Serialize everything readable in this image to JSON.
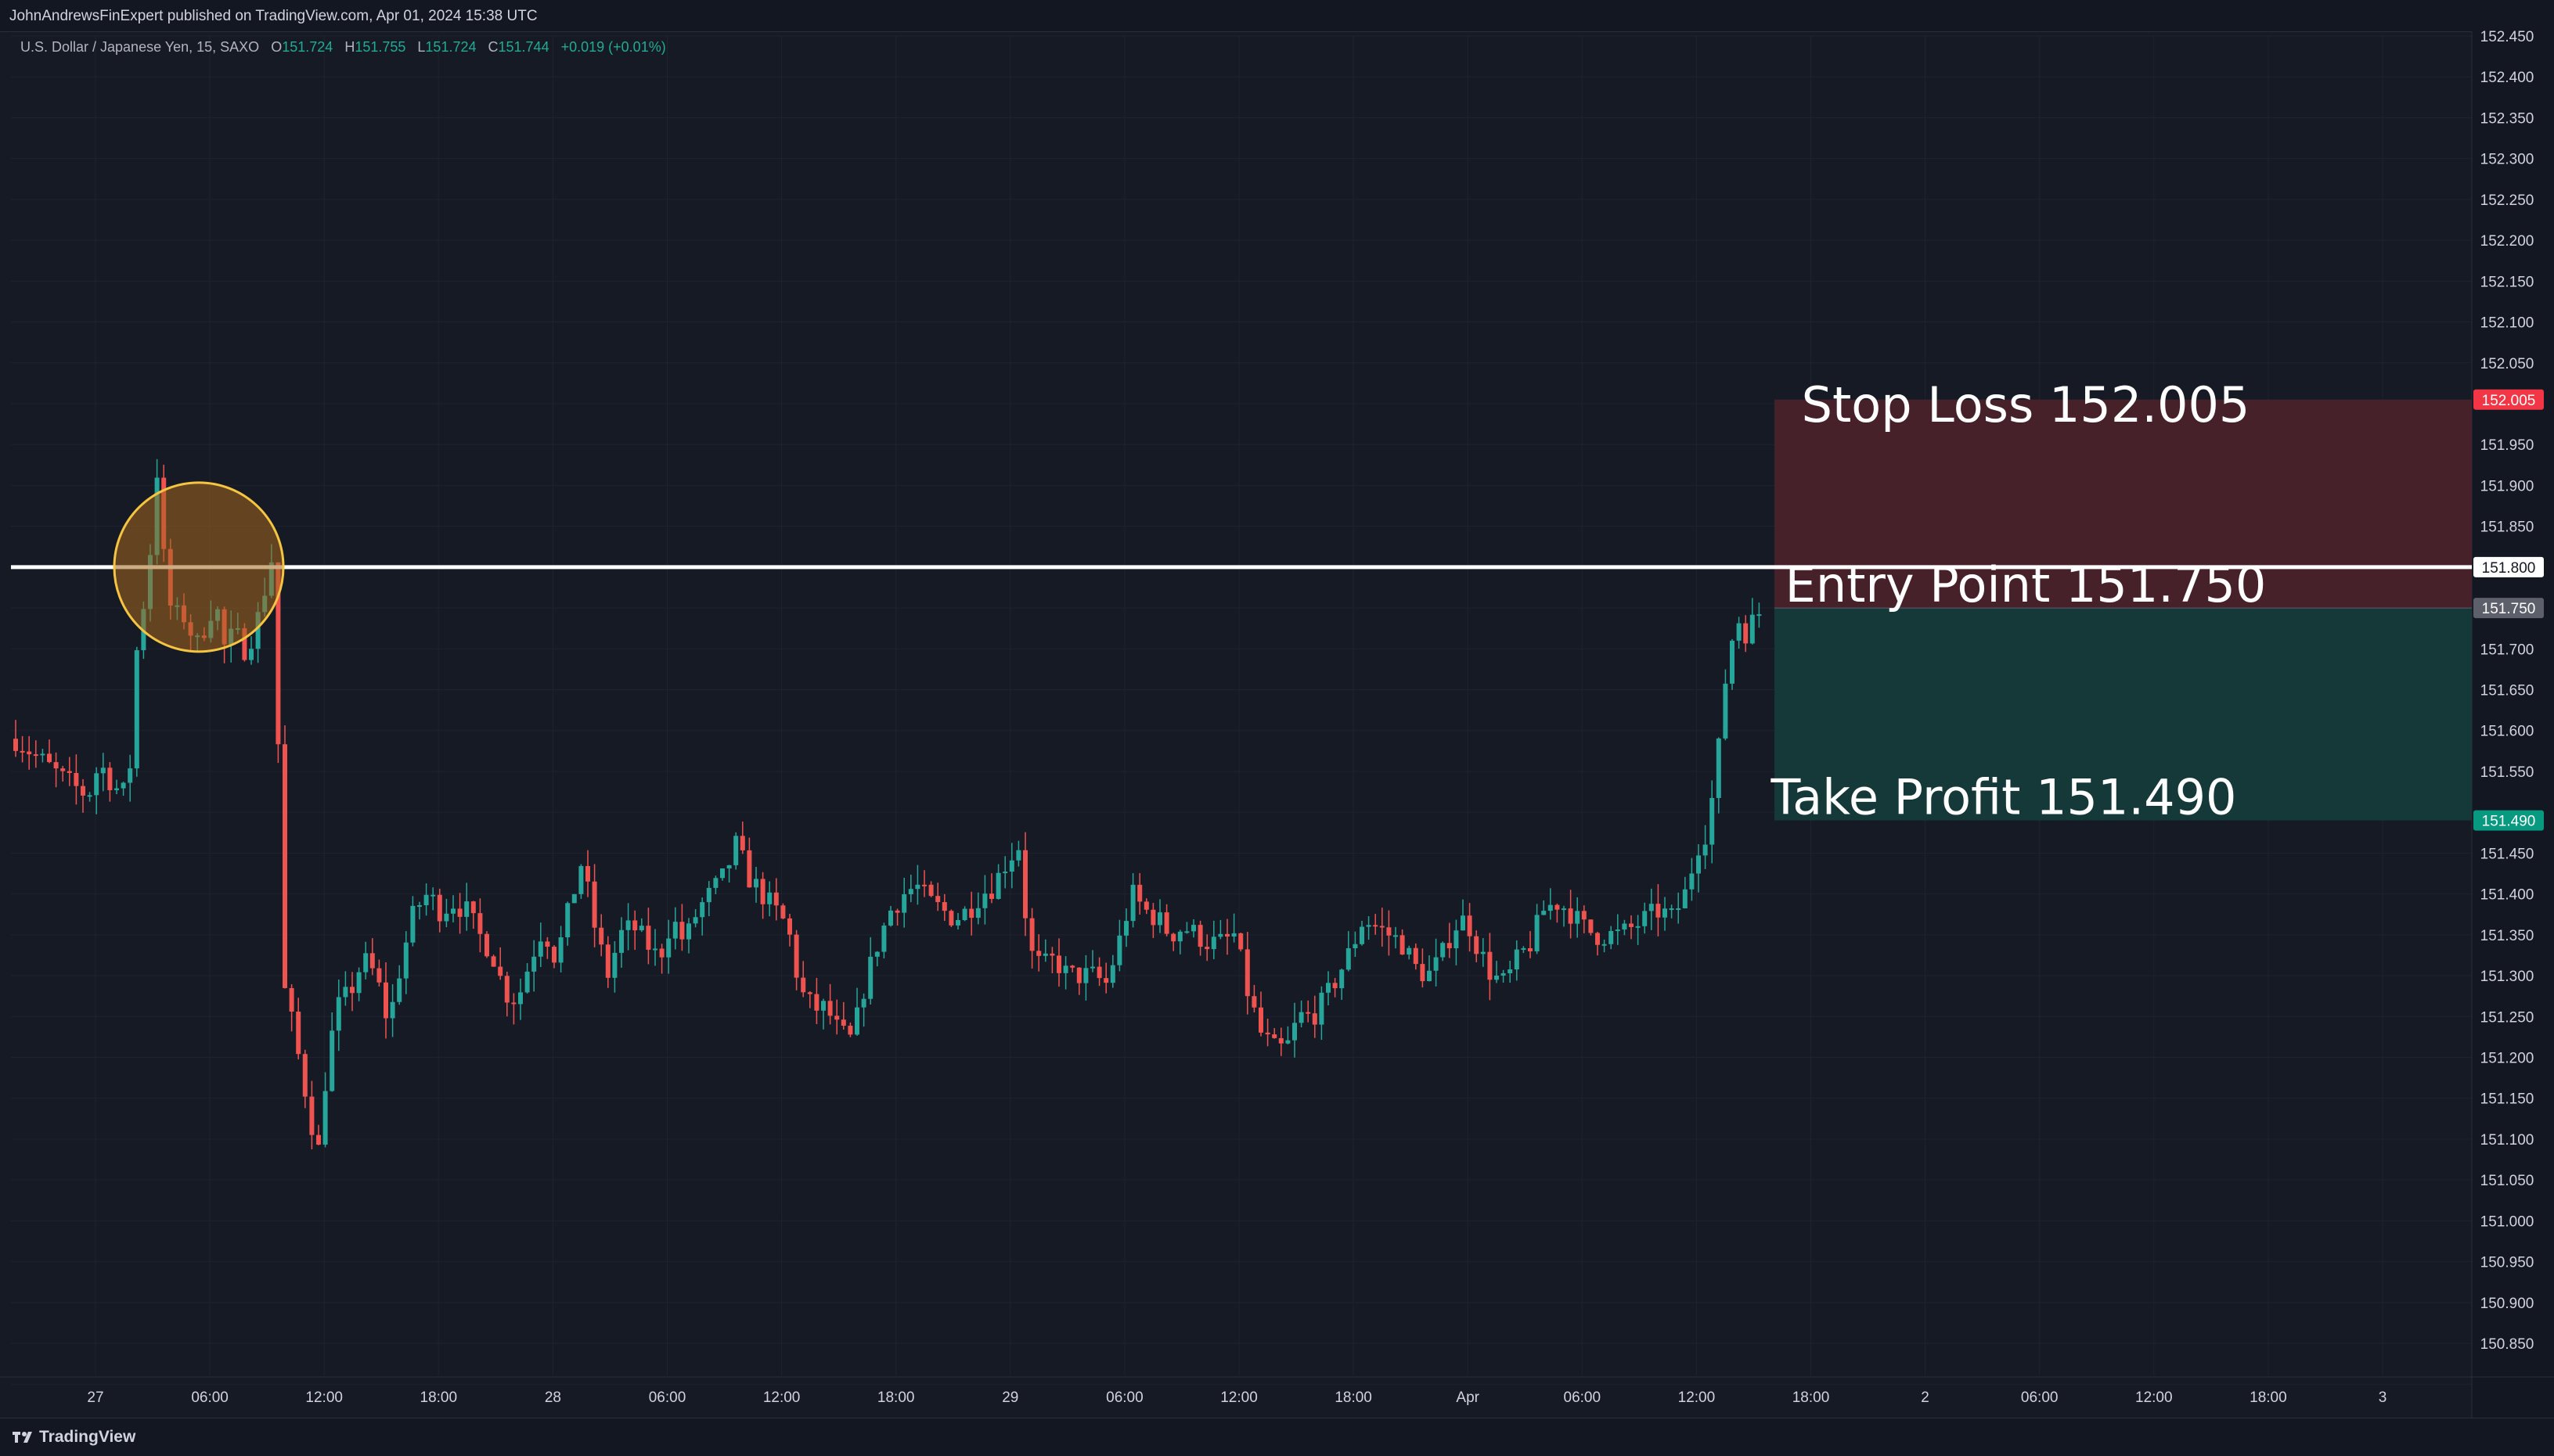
{
  "header": {
    "published_by": "JohnAndrewsFinExpert published on TradingView.com, Apr 01, 2024 15:38 UTC"
  },
  "legend": {
    "symbol": "U.S. Dollar / Japanese Yen, 15, SAXO",
    "open_label": "O",
    "open": "151.724",
    "high_label": "H",
    "high": "151.755",
    "low_label": "L",
    "low": "151.724",
    "close_label": "C",
    "close": "151.744",
    "change": "+0.019 (+0.01%)"
  },
  "footer": {
    "brand": "TradingView"
  },
  "colors": {
    "background": "#131722",
    "up_candle": "#26a69a",
    "down_candle": "#ef5350",
    "stop_zone": "#4a2229",
    "profit_zone": "#153b3a",
    "stop_badge": "#f23645",
    "profit_badge": "#089981",
    "entry_badge": "#5d606b",
    "circle_stroke": "#f5c542",
    "circle_fill": "#a4661d"
  },
  "chart_data": {
    "type": "candlestick",
    "instrument": "U.S. Dollar / Japanese Yen, 15, SAXO",
    "y_axis": {
      "range": [
        150.8,
        152.46
      ],
      "ticks": [
        "152.450",
        "152.400",
        "152.350",
        "152.300",
        "152.250",
        "152.200",
        "152.150",
        "152.100",
        "152.050",
        "151.950",
        "151.900",
        "151.850",
        "151.700",
        "151.650",
        "151.600",
        "151.550",
        "151.450",
        "151.400",
        "151.350",
        "151.300",
        "151.250",
        "151.200",
        "151.150",
        "151.100",
        "151.050",
        "151.000",
        "150.950",
        "150.900",
        "150.850"
      ]
    },
    "x_axis": {
      "ticks": [
        "27",
        "06:00",
        "12:00",
        "18:00",
        "28",
        "06:00",
        "12:00",
        "18:00",
        "29",
        "06:00",
        "12:00",
        "18:00",
        "Apr",
        "06:00",
        "12:00",
        "18:00",
        "2",
        "06:00",
        "12:00",
        "18:00",
        "3"
      ]
    },
    "horizontal_line": {
      "price": 151.8,
      "label": "151.800"
    },
    "position": {
      "stop_loss": {
        "price": 152.005,
        "label": "Stop Loss 152.005",
        "badge": "152.005"
      },
      "entry": {
        "price": 151.75,
        "label": "Entry Point 151.750",
        "badge": "151.750"
      },
      "take_profit": {
        "price": 151.49,
        "label": "Take Profit 151.490",
        "badge": "151.490"
      }
    },
    "highlight_circle": {
      "center_price": 151.8,
      "time_window": "27 early session"
    },
    "path": [
      [
        0,
        151.59
      ],
      [
        12,
        151.57
      ],
      [
        30,
        151.54
      ],
      [
        45,
        151.52
      ],
      [
        52,
        151.56
      ],
      [
        62,
        151.53
      ],
      [
        70,
        151.52
      ],
      [
        76,
        151.72
      ],
      [
        82,
        151.78
      ],
      [
        88,
        151.92
      ],
      [
        94,
        151.76
      ],
      [
        100,
        151.74
      ],
      [
        106,
        151.74
      ],
      [
        112,
        151.7
      ],
      [
        118,
        151.73
      ],
      [
        124,
        151.76
      ],
      [
        130,
        151.7
      ],
      [
        136,
        151.72
      ],
      [
        142,
        151.7
      ],
      [
        148,
        151.72
      ],
      [
        154,
        151.76
      ],
      [
        158,
        151.82
      ],
      [
        162,
        151.78
      ],
      [
        165,
        151.3
      ],
      [
        170,
        151.26
      ],
      [
        176,
        151.2
      ],
      [
        182,
        151.14
      ],
      [
        188,
        151.08
      ],
      [
        194,
        151.2
      ],
      [
        200,
        151.26
      ],
      [
        208,
        151.28
      ],
      [
        216,
        151.32
      ],
      [
        224,
        151.3
      ],
      [
        232,
        151.24
      ],
      [
        240,
        151.32
      ],
      [
        248,
        151.38
      ],
      [
        256,
        151.4
      ],
      [
        264,
        151.38
      ],
      [
        272,
        151.39
      ],
      [
        280,
        151.38
      ],
      [
        288,
        151.35
      ],
      [
        296,
        151.33
      ],
      [
        304,
        151.28
      ],
      [
        312,
        151.27
      ],
      [
        320,
        151.32
      ],
      [
        328,
        151.36
      ],
      [
        336,
        151.32
      ],
      [
        344,
        151.38
      ],
      [
        352,
        151.44
      ],
      [
        360,
        151.36
      ],
      [
        368,
        151.3
      ],
      [
        376,
        151.35
      ],
      [
        384,
        151.36
      ],
      [
        392,
        151.34
      ],
      [
        400,
        151.32
      ],
      [
        408,
        151.37
      ],
      [
        416,
        151.34
      ],
      [
        424,
        151.38
      ],
      [
        432,
        151.4
      ],
      [
        440,
        151.42
      ],
      [
        448,
        151.46
      ],
      [
        456,
        151.42
      ],
      [
        464,
        151.4
      ],
      [
        472,
        151.38
      ],
      [
        480,
        151.36
      ],
      [
        488,
        151.28
      ],
      [
        496,
        151.26
      ],
      [
        504,
        151.26
      ],
      [
        512,
        151.23
      ],
      [
        520,
        151.22
      ],
      [
        528,
        151.29
      ],
      [
        536,
        151.34
      ],
      [
        544,
        151.38
      ],
      [
        552,
        151.4
      ],
      [
        560,
        151.41
      ],
      [
        568,
        151.39
      ],
      [
        576,
        151.38
      ],
      [
        584,
        151.37
      ],
      [
        592,
        151.38
      ],
      [
        600,
        151.4
      ],
      [
        608,
        151.41
      ],
      [
        616,
        151.44
      ],
      [
        624,
        151.46
      ],
      [
        630,
        151.33
      ],
      [
        638,
        151.31
      ],
      [
        646,
        151.32
      ],
      [
        654,
        151.3
      ],
      [
        662,
        151.3
      ],
      [
        670,
        151.3
      ],
      [
        678,
        151.29
      ],
      [
        686,
        151.34
      ],
      [
        694,
        151.4
      ],
      [
        702,
        151.38
      ],
      [
        710,
        151.37
      ],
      [
        718,
        151.35
      ],
      [
        726,
        151.36
      ],
      [
        734,
        151.35
      ],
      [
        742,
        151.34
      ],
      [
        750,
        151.34
      ],
      [
        758,
        151.35
      ],
      [
        766,
        151.28
      ],
      [
        774,
        151.23
      ],
      [
        782,
        151.21
      ],
      [
        790,
        151.21
      ],
      [
        798,
        151.25
      ],
      [
        806,
        151.25
      ],
      [
        814,
        151.27
      ],
      [
        822,
        151.3
      ],
      [
        830,
        151.33
      ],
      [
        838,
        151.37
      ],
      [
        846,
        151.36
      ],
      [
        854,
        151.35
      ],
      [
        862,
        151.34
      ],
      [
        870,
        151.31
      ],
      [
        878,
        151.3
      ],
      [
        886,
        151.32
      ],
      [
        894,
        151.36
      ],
      [
        902,
        151.37
      ],
      [
        910,
        151.33
      ],
      [
        918,
        151.3
      ],
      [
        926,
        151.29
      ],
      [
        934,
        151.32
      ],
      [
        942,
        151.34
      ],
      [
        950,
        151.38
      ],
      [
        958,
        151.39
      ],
      [
        966,
        151.38
      ],
      [
        974,
        151.36
      ],
      [
        982,
        151.35
      ],
      [
        990,
        151.35
      ],
      [
        998,
        151.35
      ],
      [
        1006,
        151.36
      ],
      [
        1014,
        151.37
      ],
      [
        1022,
        151.38
      ],
      [
        1030,
        151.37
      ],
      [
        1038,
        151.4
      ],
      [
        1046,
        151.46
      ],
      [
        1052,
        151.48
      ],
      [
        1058,
        151.56
      ],
      [
        1064,
        151.68
      ],
      [
        1070,
        151.74
      ],
      [
        1076,
        151.72
      ],
      [
        1082,
        151.74
      ],
      [
        1084,
        151.744
      ]
    ],
    "candle_count": 260
  }
}
